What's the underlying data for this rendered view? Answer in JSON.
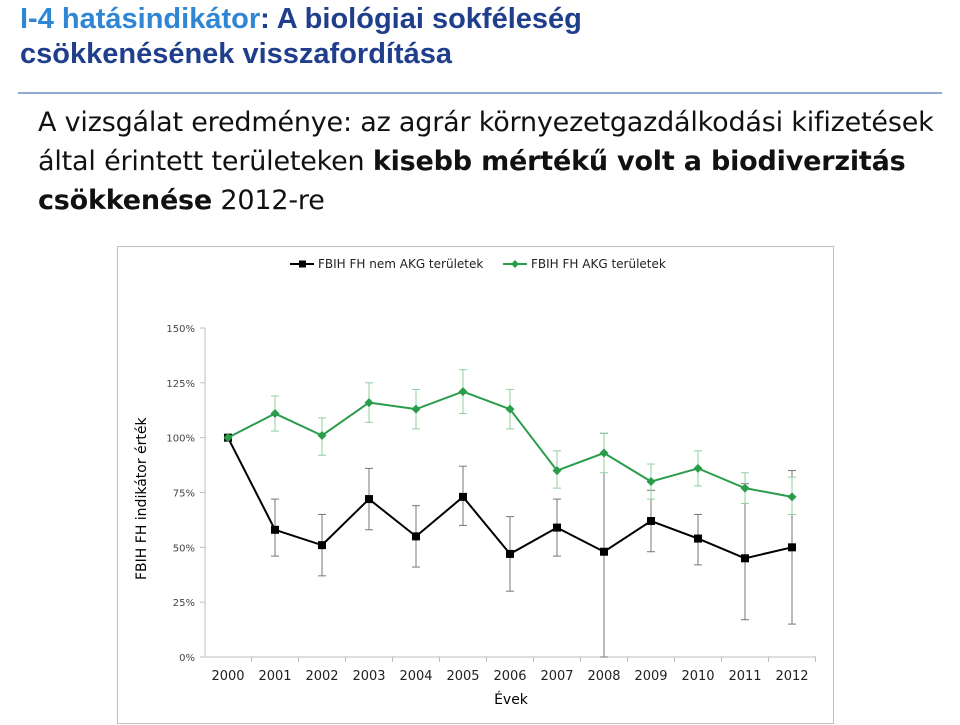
{
  "slide": {
    "title_part1": "I-4 hatásindikátor",
    "title_part2": ": A biológiai sokféleség",
    "title_line2": "csökkenésének visszafordítása",
    "subtitle_part1": "A vizsgálat eredménye: az agrár környezetgazdálkodási kifizetések által érintett területeken ",
    "subtitle_strong": "kisebb mértékű volt a biodiverzitás csökkenése",
    "subtitle_part2": " 2012-re"
  },
  "colors": {
    "title": "#1f3e8c",
    "title_accent": "#2e86d4",
    "series_black": "#000000",
    "series_green": "#2a9d4a"
  },
  "chart_data": {
    "type": "line",
    "xlabel": "Évek",
    "ylabel": "FBIH FH indikátor érték",
    "x": [
      "2000",
      "2001",
      "2002",
      "2003",
      "2004",
      "2005",
      "2006",
      "2007",
      "2008",
      "2009",
      "2010",
      "2011",
      "2012"
    ],
    "ylim": [
      0,
      150
    ],
    "yticks": [
      "0%",
      "25%",
      "50%",
      "75%",
      "100%",
      "125%",
      "150%"
    ],
    "ytick_values": [
      0,
      25,
      50,
      75,
      100,
      125,
      150
    ],
    "grid": false,
    "legend_position": "top",
    "series": [
      {
        "name": "FBIH FH nem AKG területek",
        "color": "#000000",
        "marker": "square",
        "values": [
          100,
          58,
          51,
          72,
          55,
          73,
          47,
          59,
          48,
          62,
          54,
          45,
          50
        ],
        "err_low": [
          100,
          46,
          37,
          58,
          41,
          60,
          30,
          46,
          0,
          48,
          42,
          17,
          15
        ],
        "err_high": [
          100,
          72,
          65,
          86,
          69,
          87,
          64,
          72,
          102,
          76,
          65,
          79,
          85
        ]
      },
      {
        "name": "FBIH FH AKG területek",
        "color": "#2a9d4a",
        "marker": "diamond",
        "values": [
          100,
          111,
          101,
          116,
          113,
          121,
          113,
          85,
          93,
          80,
          86,
          77,
          73
        ],
        "err_low": [
          100,
          103,
          92,
          107,
          104,
          111,
          104,
          77,
          84,
          72,
          78,
          70,
          65
        ],
        "err_high": [
          100,
          119,
          109,
          125,
          122,
          131,
          122,
          94,
          102,
          88,
          94,
          84,
          82
        ]
      }
    ]
  }
}
